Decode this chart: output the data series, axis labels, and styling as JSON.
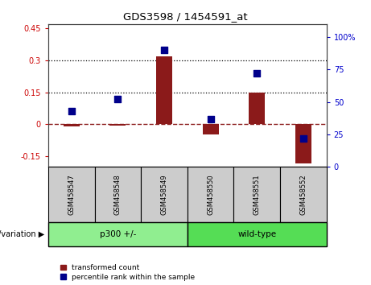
{
  "title": "GDS3598 / 1454591_at",
  "samples": [
    "GSM458547",
    "GSM458548",
    "GSM458549",
    "GSM458550",
    "GSM458551",
    "GSM458552"
  ],
  "bar_values": [
    -0.01,
    -0.005,
    0.32,
    -0.05,
    0.15,
    -0.185
  ],
  "dot_values_pct": [
    43,
    52,
    90,
    37,
    72,
    22
  ],
  "ylim_left": [
    -0.2,
    0.47
  ],
  "ylim_right": [
    0,
    110
  ],
  "yticks_left": [
    -0.15,
    0.0,
    0.15,
    0.3,
    0.45
  ],
  "yticks_right": [
    0,
    25,
    50,
    75,
    100
  ],
  "hlines": [
    0.15,
    0.3
  ],
  "hline_zero": 0.0,
  "groups": [
    {
      "label": "p300 +/-",
      "start": 0,
      "end": 3,
      "color": "#90ee90"
    },
    {
      "label": "wild-type",
      "start": 3,
      "end": 6,
      "color": "#55dd55"
    }
  ],
  "group_label_prefix": "genotype/variation",
  "group_arrow": "▶",
  "bar_color": "#8B1A1A",
  "dot_color": "#00008B",
  "zero_line_color": "#8B1A1A",
  "zero_line_style": "--",
  "hline_color": "#000000",
  "hline_style": ":",
  "bg_color": "#ffffff",
  "axis_label_color_left": "#cc0000",
  "axis_label_color_right": "#0000cc",
  "sample_bg_color": "#cccccc",
  "bar_width": 0.35,
  "dot_size": 30,
  "fig_width": 4.61,
  "fig_height": 3.54,
  "legend_labels": [
    "transformed count",
    "percentile rank within the sample"
  ]
}
